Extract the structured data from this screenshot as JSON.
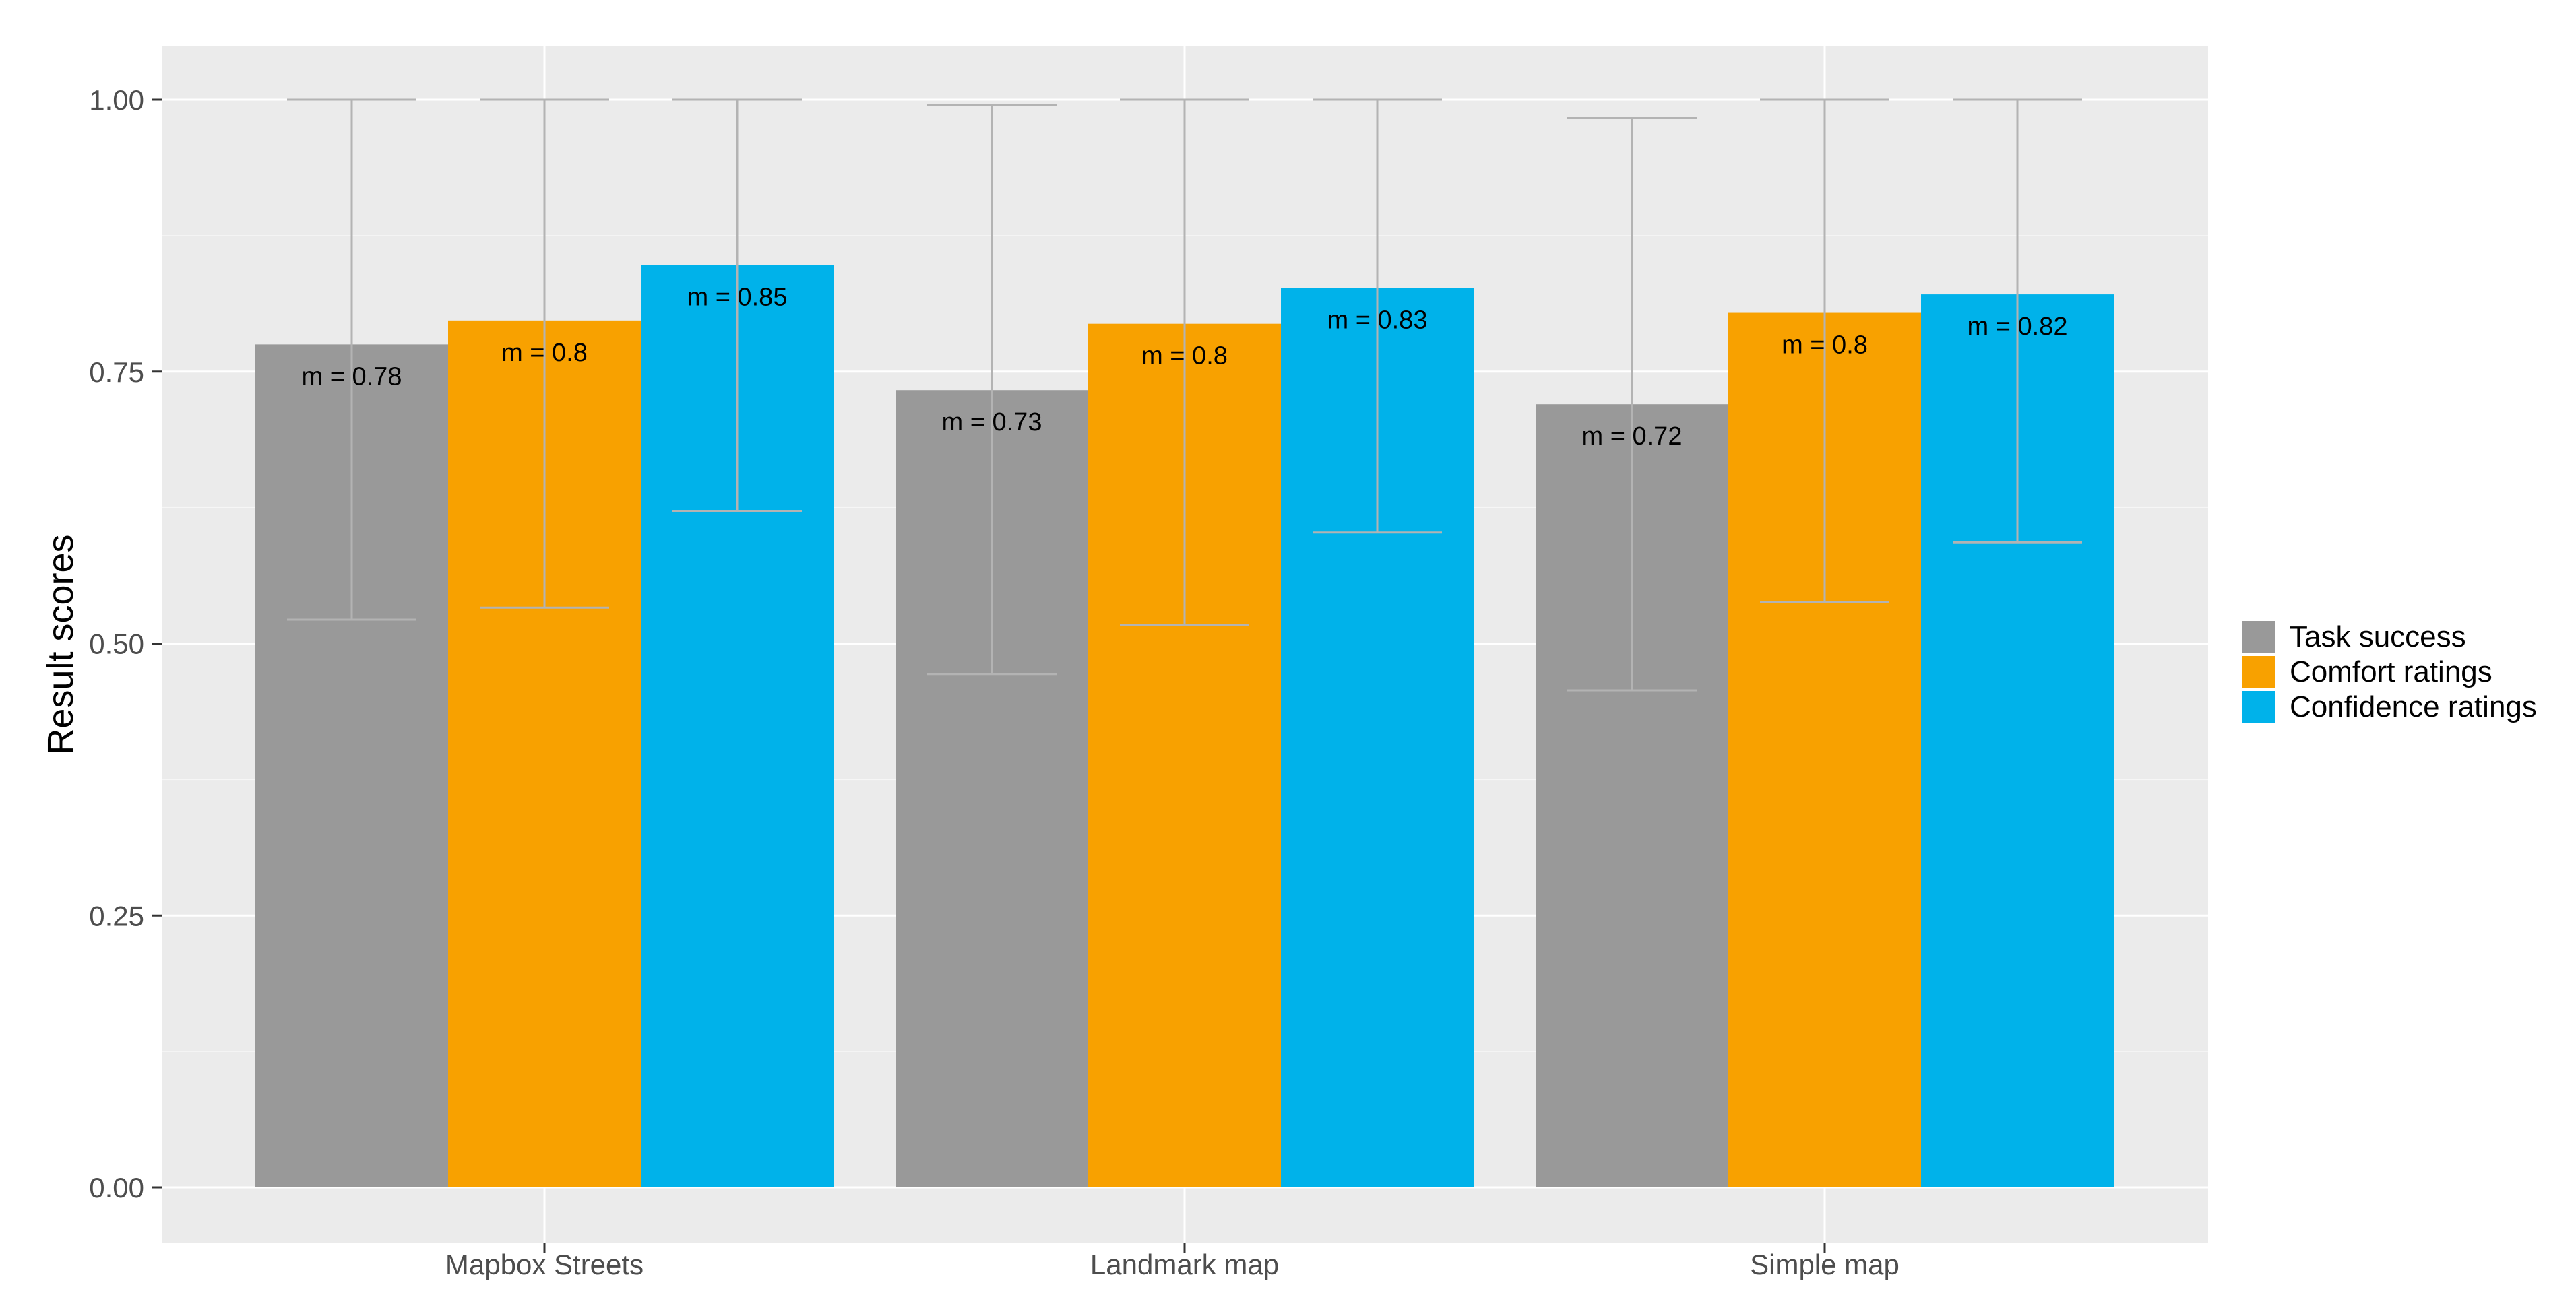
{
  "chart_data": {
    "type": "bar",
    "ylabel": "Result scores",
    "xlabel": "",
    "ylim": [
      0,
      1.05
    ],
    "y_ticks": [
      "0.00",
      "0.25",
      "0.50",
      "0.75",
      "1.00"
    ],
    "categories": [
      "Mapbox Streets",
      "Landmark map",
      "Simple map"
    ],
    "grid": true,
    "legend_position": "right",
    "series": [
      {
        "name": "Task success",
        "color": "#999999",
        "values": [
          0.775,
          0.733,
          0.72
        ],
        "labels": [
          "m = 0.78",
          "m = 0.73",
          "m = 0.72"
        ],
        "error_low": [
          0.522,
          0.472,
          0.457
        ],
        "error_high": [
          1.0,
          0.995,
          0.983
        ]
      },
      {
        "name": "Comfort ratings",
        "color": "#F8A100",
        "values": [
          0.797,
          0.794,
          0.804
        ],
        "labels": [
          "m = 0.8",
          "m = 0.8",
          "m = 0.8"
        ],
        "error_low": [
          0.533,
          0.517,
          0.538
        ],
        "error_high": [
          1.0,
          1.0,
          1.0
        ]
      },
      {
        "name": "Confidence ratings",
        "color": "#00B2EA",
        "values": [
          0.848,
          0.827,
          0.821
        ],
        "labels": [
          "m = 0.85",
          "m = 0.83",
          "m = 0.82"
        ],
        "error_low": [
          0.622,
          0.602,
          0.593
        ],
        "error_high": [
          1.0,
          1.0,
          1.0
        ]
      }
    ]
  },
  "colors": {
    "panel_background": "#EBEBEB",
    "grid_major": "#FFFFFF",
    "error_bar": "#B3B3B3"
  }
}
